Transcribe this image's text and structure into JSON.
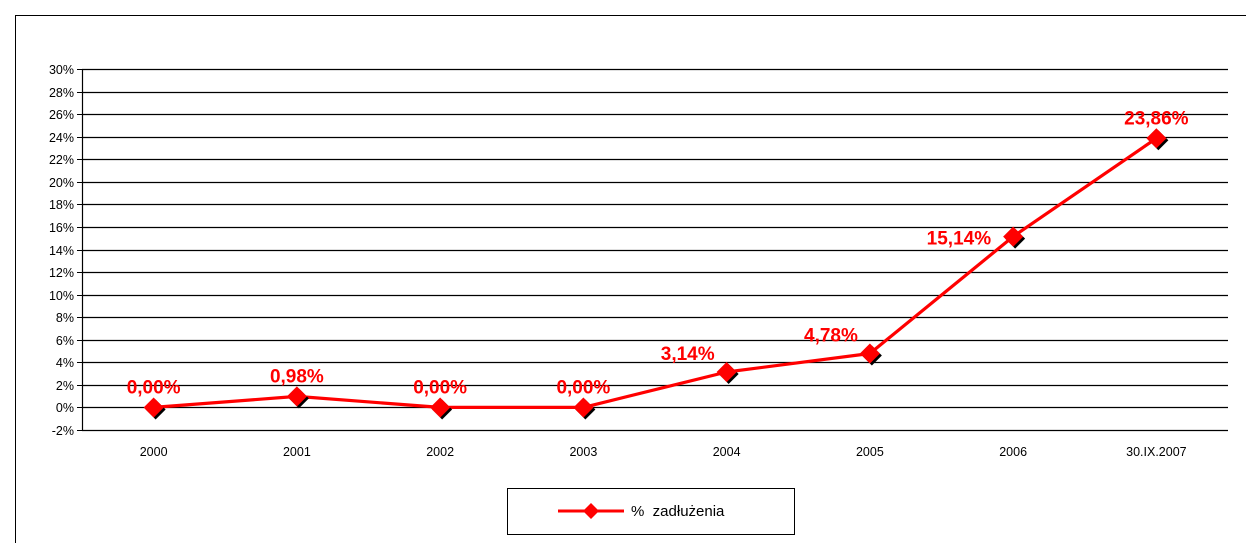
{
  "colors": {
    "series": "#ff0000",
    "grid": "#000000",
    "frame": "#000000",
    "background": "#ffffff"
  },
  "legend": {
    "label": "%  zadłużenia",
    "marker_icon": "red-diamond-icon",
    "position": "bottom-center"
  },
  "chart_data": {
    "type": "line",
    "title": "",
    "xlabel": "",
    "ylabel": "",
    "categories": [
      "2000",
      "2001",
      "2002",
      "2003",
      "2004",
      "2005",
      "2006",
      "30.IX.2007"
    ],
    "series": [
      {
        "name": "%  zadłużenia",
        "values": [
          0.0,
          0.98,
          0.0,
          0.0,
          3.14,
          4.78,
          15.14,
          23.86
        ],
        "data_labels": [
          "0,00%",
          "0,98%",
          "0,00%",
          "0,00%",
          "3,14%",
          "4,78%",
          "15,14%",
          "23,86%"
        ]
      }
    ],
    "ylim": [
      -2,
      30
    ],
    "yticks": [
      -2,
      0,
      2,
      4,
      6,
      8,
      10,
      12,
      14,
      16,
      18,
      20,
      22,
      24,
      26,
      28,
      30
    ],
    "ytick_labels": [
      "-2%",
      "0%",
      "2%",
      "4%",
      "6%",
      "8%",
      "10%",
      "12%",
      "14%",
      "16%",
      "18%",
      "20%",
      "22%",
      "24%",
      "26%",
      "28%",
      "30%"
    ],
    "grid": true,
    "legend_placement": "bottom-center"
  }
}
